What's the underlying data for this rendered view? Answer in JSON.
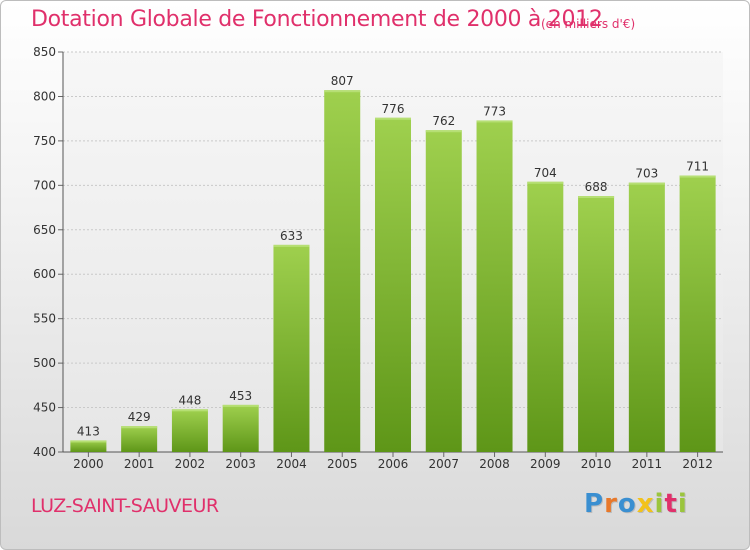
{
  "header": {
    "title": "Dotation Globale de Fonctionnement de 2000 à 2012",
    "unit_note": "(en milliers d'€)"
  },
  "footer": {
    "commune": "LUZ-SAINT-SAUVEUR",
    "logo": {
      "letters": [
        "P",
        "r",
        "o",
        "x",
        "i",
        "t",
        "i"
      ],
      "colors": [
        "#3a8fd1",
        "#e8782a",
        "#3a8fd1",
        "#f2c21b",
        "#9bc53d",
        "#e0306b",
        "#9bc53d"
      ]
    }
  },
  "colors": {
    "bar_top": "#9fd04e",
    "bar_bottom": "#5e9618",
    "accent": "#e0306b"
  },
  "chart_data": {
    "type": "bar",
    "title": "Dotation Globale de Fonctionnement de 2000 à 2012",
    "subtitle": "(en milliers d'€)",
    "xlabel": "",
    "ylabel": "",
    "categories": [
      "2000",
      "2001",
      "2002",
      "2003",
      "2004",
      "2005",
      "2006",
      "2007",
      "2008",
      "2009",
      "2010",
      "2011",
      "2012"
    ],
    "values": [
      413,
      429,
      448,
      453,
      633,
      807,
      776,
      762,
      773,
      704,
      688,
      703,
      711
    ],
    "ylim": [
      400,
      850
    ],
    "yticks": [
      400,
      450,
      500,
      550,
      600,
      650,
      700,
      750,
      800,
      850
    ],
    "grid": true,
    "data_labels": true,
    "legend": "none"
  }
}
